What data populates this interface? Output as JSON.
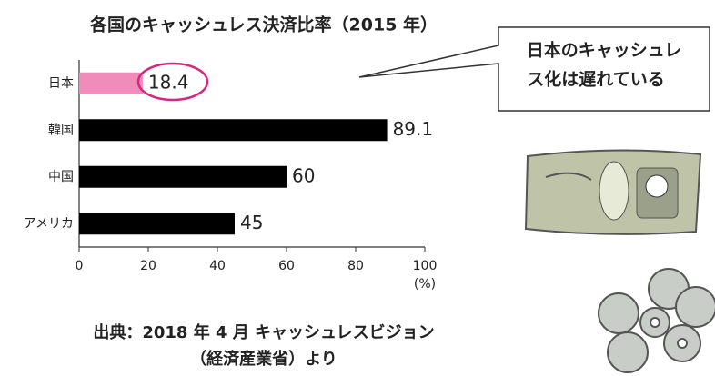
{
  "chart_data": {
    "type": "barh",
    "title": "各国のキャッシュレス決済比率（2015 年）",
    "categories": [
      "日本",
      "韓国",
      "中国",
      "アメリカ"
    ],
    "values": [
      18.4,
      89.1,
      60,
      45
    ],
    "colors": [
      "#f08cba",
      "#000000",
      "#000000",
      "#000000"
    ],
    "xlim": [
      0,
      100
    ],
    "xticks": [
      0,
      20,
      40,
      60,
      80,
      100
    ],
    "xlabel": "(%)",
    "callout": [
      "日本のキャッシュレ",
      "ス化は遅れている"
    ],
    "source": [
      "出典：2018 年 4 月 キャッシュレスビジョン",
      "（経済産業省）より"
    ]
  }
}
